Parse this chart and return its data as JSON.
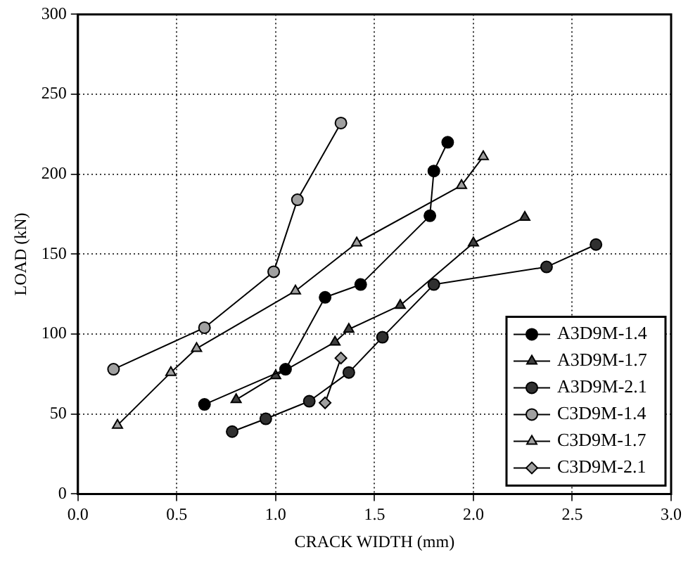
{
  "chart_data": {
    "type": "line",
    "xlabel": "CRACK WIDTH (mm)",
    "ylabel": "LOAD (kN)",
    "xlim": [
      0,
      3
    ],
    "xticks": [
      {
        "value": 0,
        "label": "0.0"
      },
      0.5,
      {
        "value": 1,
        "label": "1.0"
      },
      1.5,
      {
        "value": 2,
        "label": "2.0"
      },
      2.5,
      {
        "value": 3,
        "label": "3.0"
      }
    ],
    "ylim": [
      0,
      300
    ],
    "yticks": [
      0,
      50,
      100,
      150,
      200,
      250,
      300
    ],
    "grid": true,
    "legend": "bottom right",
    "line_style": "solid",
    "series": [
      {
        "name": "A3D9M-1.4",
        "color": "#000000",
        "marker": "circle",
        "x": [
          0.64,
          1.05,
          1.25,
          1.43,
          1.78,
          1.8,
          1.87
        ],
        "values": [
          56,
          78,
          123,
          131,
          174,
          202,
          220
        ]
      },
      {
        "name": "A3D9M-1.7",
        "color": "#404040",
        "marker": "triangle",
        "x": [
          0.8,
          1.0,
          1.3,
          1.37,
          1.63,
          2.0,
          2.26
        ],
        "values": [
          59,
          74,
          95,
          103,
          118,
          157,
          173
        ]
      },
      {
        "name": "A3D9M-2.1",
        "color": "#303030",
        "marker": "circle",
        "x": [
          0.78,
          0.95,
          1.17,
          1.37,
          1.54,
          1.8,
          2.37,
          2.62
        ],
        "values": [
          39,
          47,
          58,
          76,
          98,
          131,
          142,
          156
        ]
      },
      {
        "name": "C3D9M-1.4",
        "color": "#a0a0a0",
        "marker": "circle",
        "x": [
          0.18,
          0.64,
          0.99,
          1.11,
          1.33
        ],
        "values": [
          78,
          104,
          139,
          184,
          232
        ]
      },
      {
        "name": "C3D9M-1.7",
        "color": "#a0a0a0",
        "marker": "triangle",
        "x": [
          0.2,
          0.47,
          0.6,
          1.1,
          1.41,
          1.94,
          2.05
        ],
        "values": [
          43,
          76,
          91,
          127,
          157,
          193,
          211
        ]
      },
      {
        "name": "C3D9M-2.1",
        "color": "#a0a0a0",
        "marker": "diamond",
        "x": [
          1.25,
          1.33
        ],
        "values": [
          57,
          85
        ]
      }
    ]
  }
}
